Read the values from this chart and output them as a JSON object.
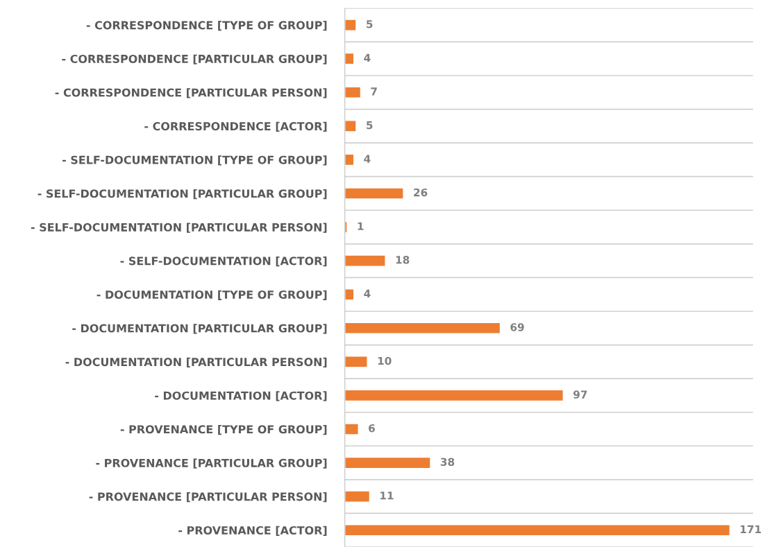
{
  "chart_data": {
    "type": "bar",
    "orientation": "horizontal",
    "categories": [
      "- CORRESPONDENCE [TYPE OF GROUP]",
      "- CORRESPONDENCE [PARTICULAR GROUP]",
      "- CORRESPONDENCE [PARTICULAR PERSON]",
      "- CORRESPONDENCE [ACTOR]",
      "- SELF-DOCUMENTATION [TYPE OF GROUP]",
      "- SELF-DOCUMENTATION [PARTICULAR GROUP]",
      "- SELF-DOCUMENTATION [PARTICULAR PERSON]",
      "- SELF-DOCUMENTATION [ACTOR]",
      "- DOCUMENTATION [TYPE OF GROUP]",
      "- DOCUMENTATION [PARTICULAR GROUP]",
      "- DOCUMENTATION [PARTICULAR PERSON]",
      "- DOCUMENTATION [ACTOR]",
      "- PROVENANCE [TYPE OF GROUP]",
      "- PROVENANCE [PARTICULAR GROUP]",
      "- PROVENANCE [PARTICULAR PERSON]",
      "- PROVENANCE [ACTOR]"
    ],
    "values": [
      5,
      4,
      7,
      5,
      4,
      26,
      1,
      18,
      4,
      69,
      10,
      97,
      6,
      38,
      11,
      171
    ],
    "color": "#ed7d31",
    "data_labels": true,
    "grid": "y",
    "tick_labels": "y"
  }
}
